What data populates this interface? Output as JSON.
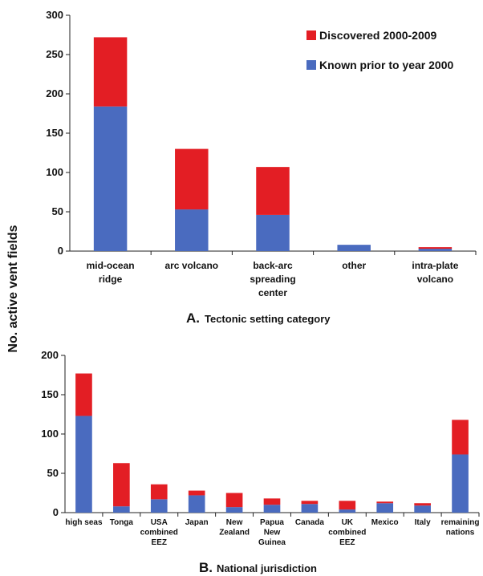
{
  "ylabel": "No. active vent fields",
  "colors": {
    "discovered": "#e31e24",
    "known": "#4a6bbf"
  },
  "legend": {
    "discovered": "Discovered 2000-2009",
    "known": "Known prior to year 2000"
  },
  "chart_data": [
    {
      "type": "bar",
      "stacked": true,
      "caption_letter": "A.",
      "caption_text": "Tectonic setting category",
      "xlabel": "Tectonic setting category",
      "ylim": [
        0,
        300
      ],
      "yticks": [
        0,
        50,
        100,
        150,
        200,
        250,
        300
      ],
      "legend_position": "top-right",
      "categories": [
        [
          "mid-ocean",
          "ridge"
        ],
        [
          "arc volcano"
        ],
        [
          "back-arc",
          "spreading",
          "center"
        ],
        [
          "other"
        ],
        [
          "intra-plate",
          "volcano"
        ]
      ],
      "series": [
        {
          "name": "Known prior to year 2000",
          "values": [
            184,
            53,
            46,
            8,
            3
          ]
        },
        {
          "name": "Discovered 2000-2009",
          "values": [
            88,
            77,
            61,
            0,
            2
          ]
        }
      ]
    },
    {
      "type": "bar",
      "stacked": true,
      "caption_letter": "B.",
      "caption_text": "National jurisdiction",
      "xlabel": "National jurisdiction",
      "ylim": [
        0,
        200
      ],
      "yticks": [
        0,
        50,
        100,
        150,
        200
      ],
      "categories": [
        [
          "high seas"
        ],
        [
          "Tonga"
        ],
        [
          "USA",
          "combined",
          "EEZ"
        ],
        [
          "Japan"
        ],
        [
          "New",
          "Zealand"
        ],
        [
          "Papua",
          "New",
          "Guinea"
        ],
        [
          "Canada"
        ],
        [
          "UK",
          "combined",
          "EEZ"
        ],
        [
          "Mexico"
        ],
        [
          "Italy"
        ],
        [
          "remaining",
          "nations"
        ]
      ],
      "series": [
        {
          "name": "Known prior to year 2000",
          "values": [
            123,
            8,
            17,
            22,
            7,
            10,
            11,
            4,
            12,
            9,
            74
          ]
        },
        {
          "name": "Discovered 2000-2009",
          "values": [
            54,
            55,
            19,
            6,
            18,
            8,
            4,
            11,
            2,
            3,
            44
          ]
        }
      ]
    }
  ]
}
